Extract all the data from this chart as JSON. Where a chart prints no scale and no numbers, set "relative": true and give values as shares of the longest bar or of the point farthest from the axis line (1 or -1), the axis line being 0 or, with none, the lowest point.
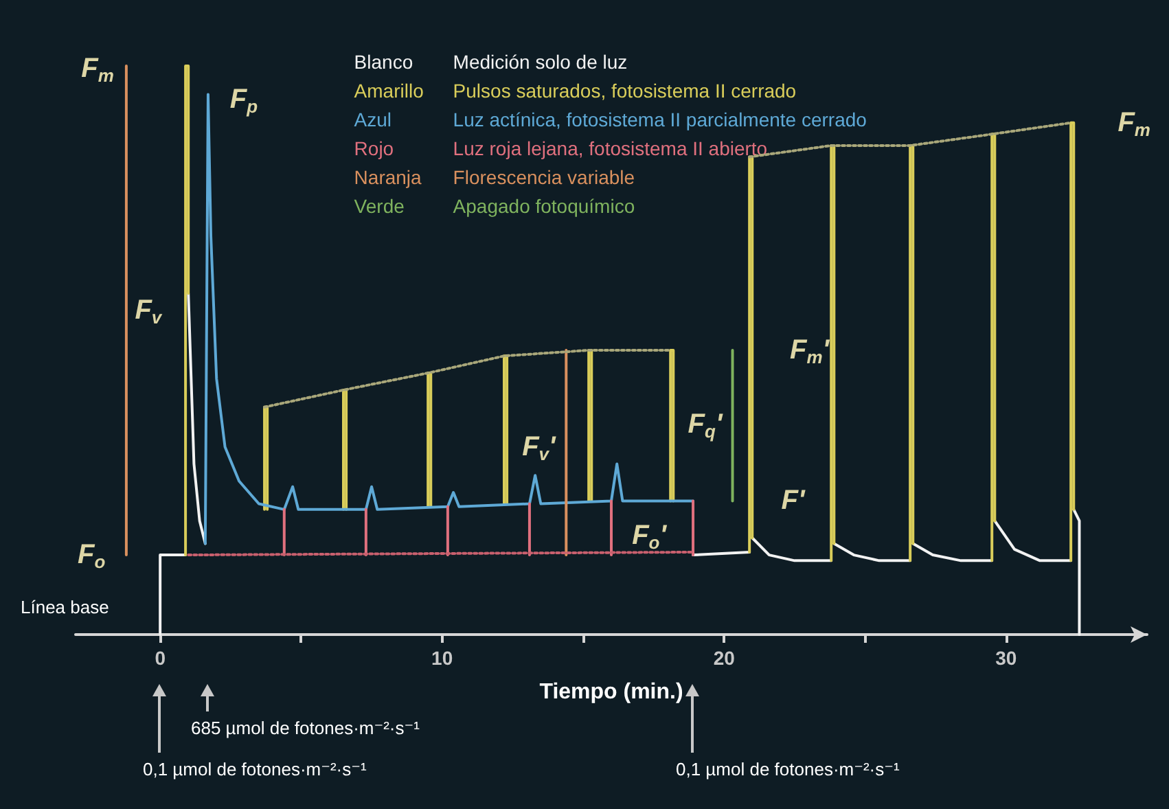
{
  "chart_data": {
    "type": "line",
    "relative": true,
    "xlabel": "Tiempo (min.)",
    "xlim": [
      -3,
      35
    ],
    "xticks": [
      0,
      {
        "value": 5,
        "label": null
      },
      10,
      {
        "value": 15,
        "label": null
      },
      20,
      {
        "value": 25,
        "label": null
      },
      30
    ],
    "legend": "top",
    "series": [
      {
        "name": "Medición solo de luz",
        "color": "#f2f2f2",
        "x": [
          0,
          0,
          0.9,
          null,
          1.0,
          1.2,
          1.4,
          1.6,
          null,
          18.9,
          20.9,
          null,
          21.0,
          21.6,
          22.5,
          23.8,
          null,
          23.9,
          24.6,
          25.5,
          26.6,
          null,
          26.7,
          27.4,
          28.4,
          29.5,
          null,
          29.6,
          30.3,
          31.2,
          32.3,
          null,
          32.4,
          32.6,
          32.6
        ],
        "values": [
          0,
          0.14,
          0.14,
          null,
          0.6,
          0.3,
          0.2,
          0.16,
          null,
          0.14,
          0.145,
          null,
          0.17,
          0.14,
          0.13,
          0.13,
          null,
          0.16,
          0.14,
          0.13,
          0.13,
          null,
          0.16,
          0.14,
          0.13,
          0.13,
          null,
          0.2,
          0.15,
          0.13,
          0.13,
          null,
          0.22,
          0.2,
          0
        ]
      },
      {
        "name": "Pulsos saturados, fotosistema II cerrado",
        "color": "#d9cd5a",
        "x": [
          0.9,
          0.9,
          1.0,
          1.0,
          null,
          3.7,
          3.7,
          3.8,
          3.8,
          null,
          6.5,
          6.5,
          6.6,
          6.6,
          null,
          9.5,
          9.5,
          9.6,
          9.6,
          null,
          12.2,
          12.2,
          12.3,
          12.3,
          null,
          15.2,
          15.2,
          15.3,
          15.3,
          null,
          18.1,
          18.1,
          18.2,
          18.2,
          null,
          20.9,
          20.9,
          21.0,
          21.0,
          null,
          23.8,
          23.8,
          23.9,
          23.9,
          null,
          26.6,
          26.6,
          26.7,
          26.7,
          null,
          29.5,
          29.5,
          29.6,
          29.6,
          null,
          32.3,
          32.3,
          32.4,
          32.4
        ],
        "values": [
          0.14,
          1.0,
          1.0,
          0.6,
          null,
          0.22,
          0.4,
          0.4,
          0.22,
          null,
          0.22,
          0.43,
          0.43,
          0.22,
          null,
          0.225,
          0.46,
          0.46,
          0.225,
          null,
          0.23,
          0.49,
          0.49,
          0.23,
          null,
          0.235,
          0.5,
          0.5,
          0.235,
          null,
          0.235,
          0.5,
          0.5,
          0.235,
          null,
          0.145,
          0.84,
          0.84,
          0.17,
          null,
          0.13,
          0.86,
          0.86,
          0.16,
          null,
          0.13,
          0.86,
          0.86,
          0.16,
          null,
          0.13,
          0.88,
          0.88,
          0.2,
          null,
          0.13,
          0.9,
          0.9,
          0.22
        ]
      },
      {
        "name": "Luz actínica, fotosistema II parcialmente cerrado",
        "color": "#5ea9d6",
        "x": [
          1.6,
          1.7,
          1.8,
          2.0,
          2.3,
          2.8,
          3.5,
          4.4,
          4.7,
          4.9,
          7.3,
          7.5,
          7.7,
          10.2,
          10.4,
          10.6,
          13.1,
          13.3,
          13.5,
          16.0,
          16.2,
          16.4,
          18.9
        ],
        "values": [
          0.16,
          0.95,
          0.7,
          0.45,
          0.33,
          0.27,
          0.23,
          0.22,
          0.26,
          0.22,
          0.22,
          0.26,
          0.22,
          0.225,
          0.25,
          0.225,
          0.23,
          0.28,
          0.23,
          0.235,
          0.3,
          0.235,
          0.235
        ]
      },
      {
        "name": "Luz roja lejana, fotosistema II abierto",
        "color": "#e0707e",
        "x": [
          4.4,
          4.4,
          null,
          7.3,
          7.3,
          null,
          10.2,
          10.2,
          null,
          13.1,
          13.1,
          null,
          16.0,
          16.0,
          null,
          18.9,
          18.9
        ],
        "values": [
          0.22,
          0.14,
          null,
          0.22,
          0.14,
          null,
          0.225,
          0.14,
          null,
          0.23,
          0.14,
          null,
          0.235,
          0.14,
          null,
          0.235,
          0.14
        ]
      },
      {
        "name": "Florescencia variable",
        "color": "#d9905e",
        "x": [
          -1.2,
          -1.2,
          null,
          14.4,
          14.4
        ],
        "values": [
          0.14,
          1.0,
          null,
          0.14,
          0.5
        ]
      },
      {
        "name": "Apagado fotoquímico",
        "color": "#7fb35e",
        "x": [
          20.3,
          20.3
        ],
        "values": [
          0.235,
          0.5
        ]
      },
      {
        "color": "#a9a77a",
        "line_style": "dotted",
        "x": [
          3.7,
          6.5,
          9.5,
          12.2,
          15.2,
          18.1,
          null,
          20.9,
          23.8,
          26.6,
          29.5,
          32.3
        ],
        "values": [
          0.4,
          0.43,
          0.46,
          0.49,
          0.5,
          0.5,
          null,
          0.84,
          0.86,
          0.86,
          0.88,
          0.9
        ]
      },
      {
        "color": "#c9606e",
        "line_style": "dotted",
        "x": [
          1.0,
          18.9
        ],
        "values": [
          0.14,
          0.145
        ]
      }
    ],
    "annotations": [
      "Blanco",
      "Amarillo",
      "Azul",
      "Rojo",
      "Naranja",
      "Verde",
      "Línea base",
      {
        "text": "F$_{m}$",
        "x": 0.9,
        "y": 1.0
      },
      {
        "text": "F$_{p}$",
        "x": 1.7,
        "y": 0.95
      },
      {
        "text": "F$_{v}$",
        "x": -1.2,
        "y": 0.57
      },
      {
        "text": "F$_{v}$'",
        "x": 14.4,
        "y": 0.33
      },
      {
        "text": "F$_{m}$'",
        "x": 20.3,
        "y": 0.5
      },
      {
        "text": "F$_{q}$'",
        "x": 20.3,
        "y": 0.37
      },
      {
        "text": "F'",
        "x": 20.3,
        "y": 0.235
      },
      {
        "text": "F$_{o}$",
        "x": 0,
        "y": 0.14
      },
      {
        "text": "F$_{o}$'",
        "x": 18.9,
        "y": 0.145
      },
      {
        "text": "F$_{m}$",
        "x": 32.3,
        "y": 0.9
      },
      "0,1 µmol de fotones·m⁻²·s⁻¹",
      "685 µmol de fotones·m⁻²·s⁻¹",
      "0,1 µmol de fotones·m⁻²·s⁻¹"
    ]
  }
}
